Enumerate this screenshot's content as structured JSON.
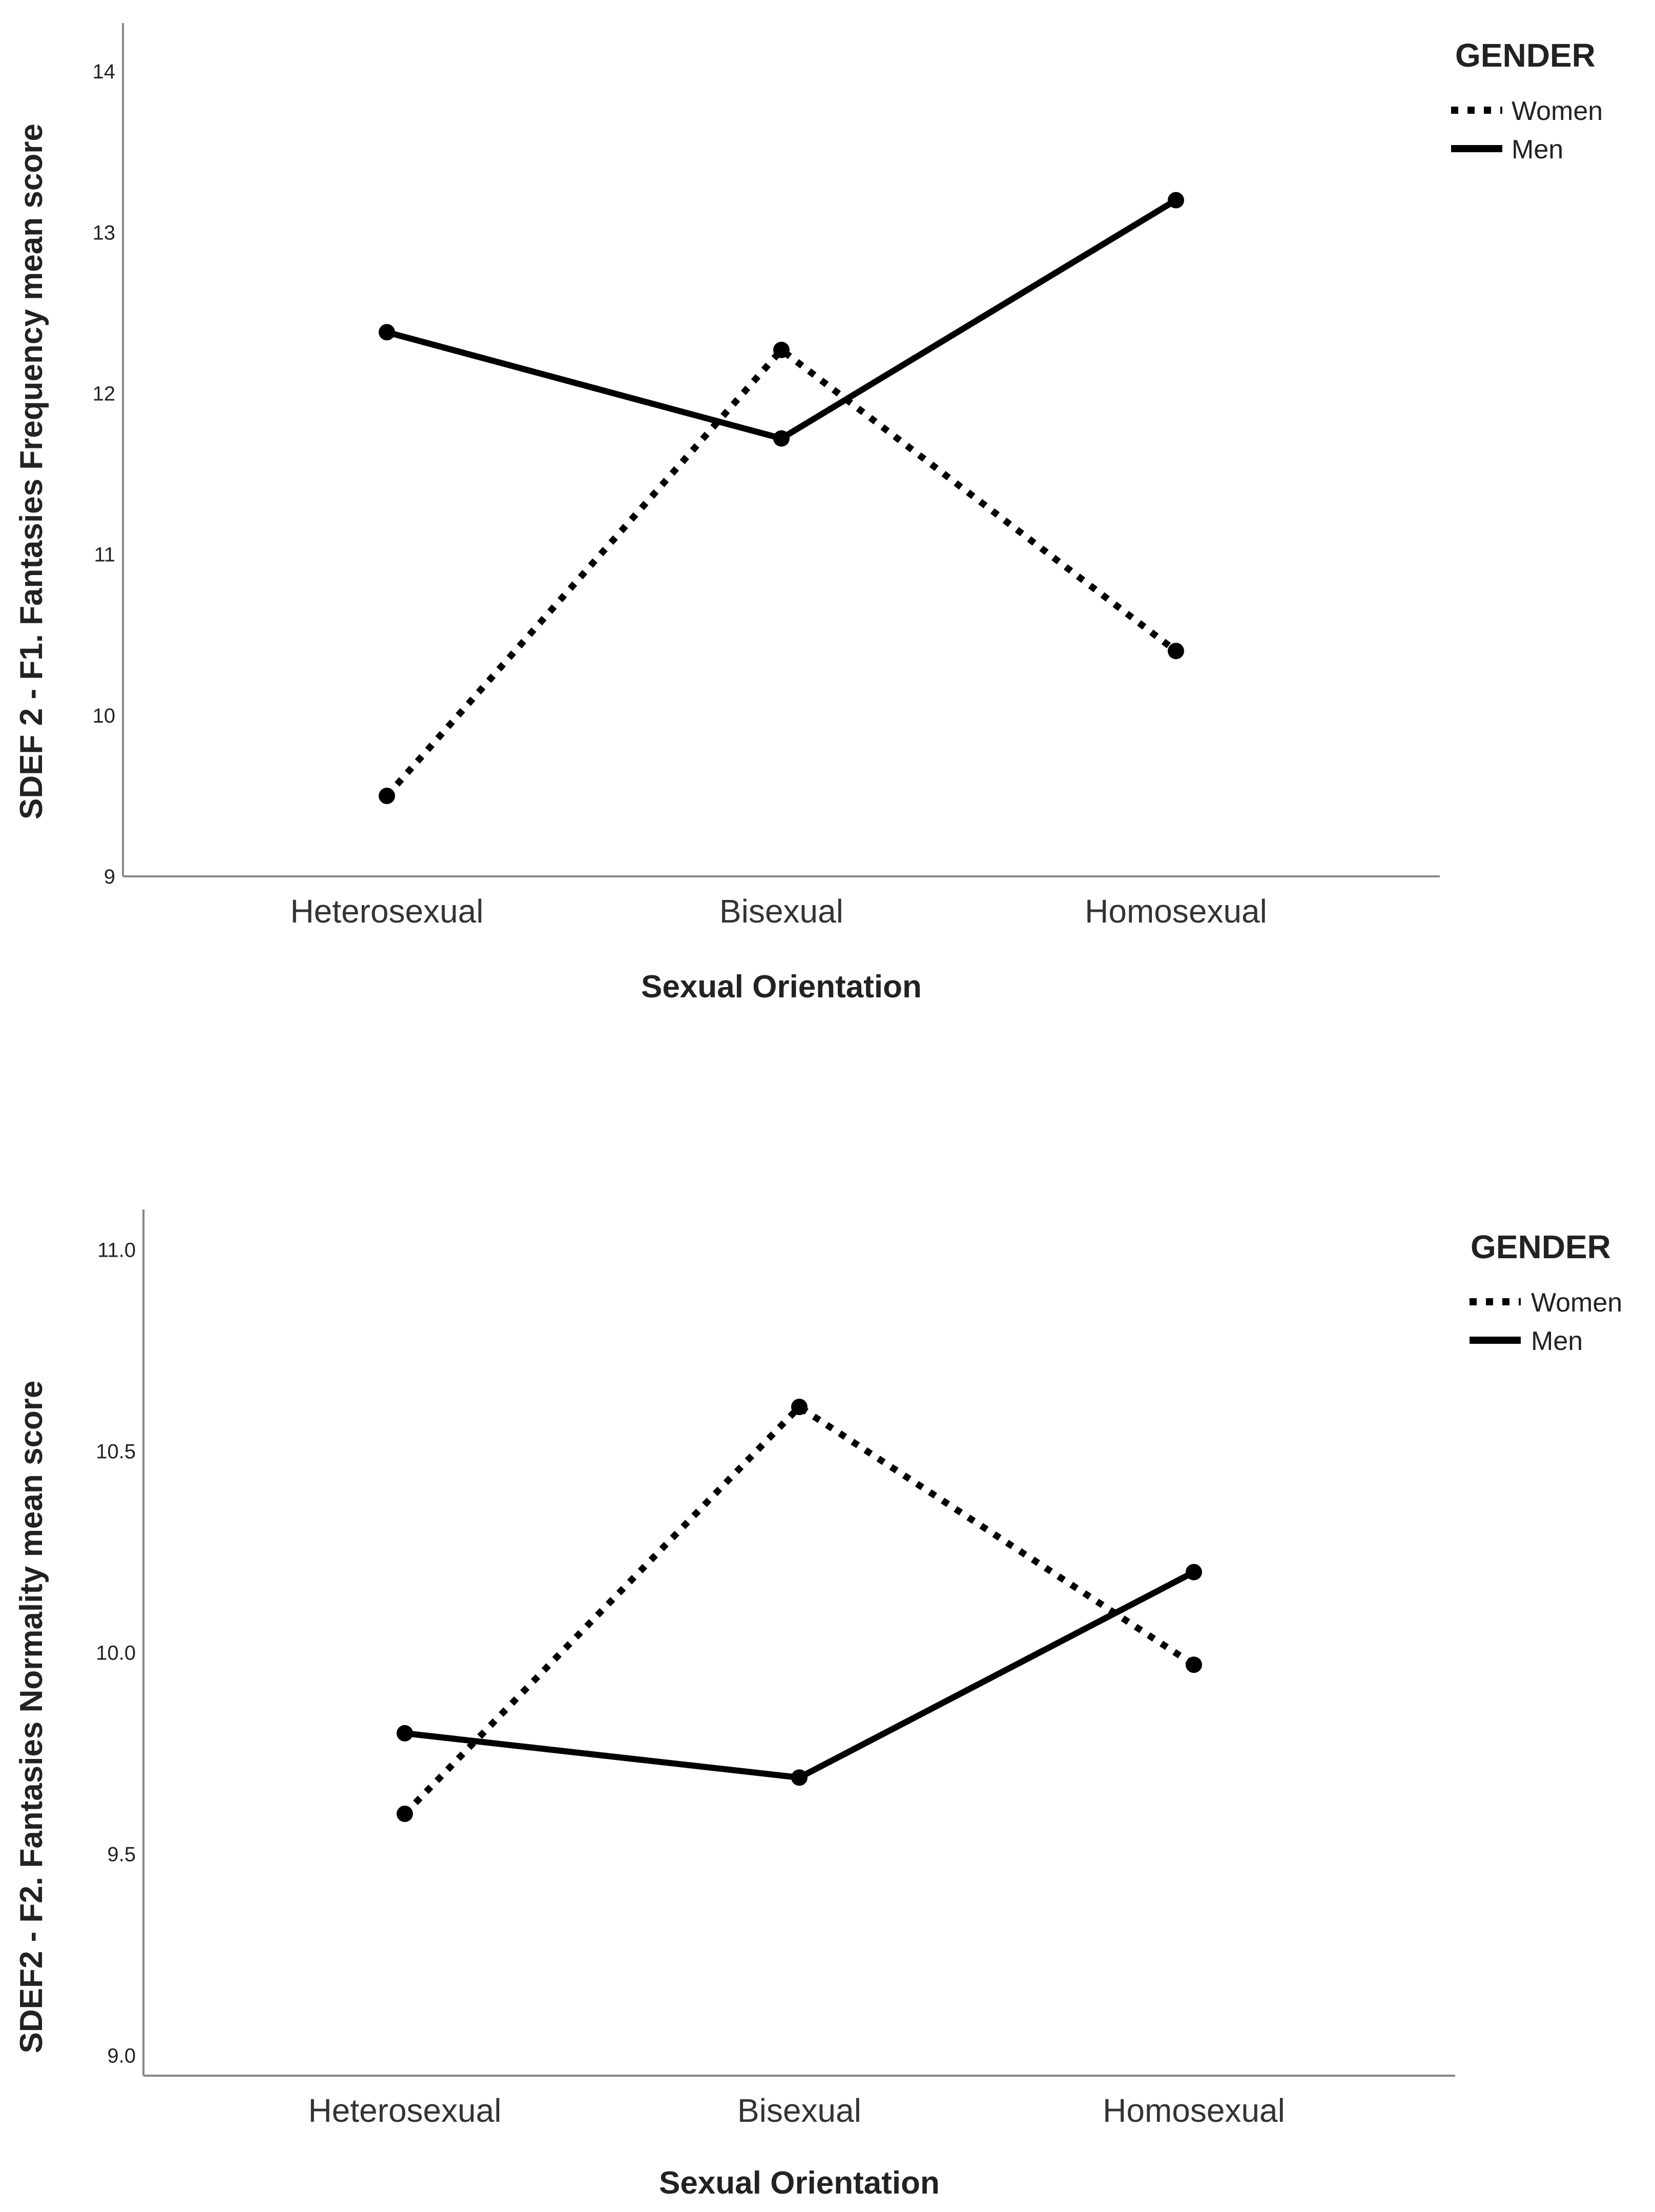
{
  "chart_data": [
    {
      "type": "line",
      "title": "",
      "xlabel": "Sexual Orientation",
      "ylabel": "SDEF 2 - F1. Fantasies Frequency mean score",
      "categories": [
        "Heterosexual",
        "Bisexual",
        "Homosexual"
      ],
      "ylim": [
        9,
        14.3
      ],
      "yticks": [
        9,
        10,
        11,
        12,
        13,
        14
      ],
      "ytick_labels": [
        "9",
        "10",
        "11",
        "12",
        "13",
        "14"
      ],
      "grid": false,
      "legend": {
        "title": "GENDER",
        "position": "top-right"
      },
      "series": [
        {
          "name": "Women",
          "style": "dotted",
          "values": [
            9.5,
            12.27,
            10.4
          ]
        },
        {
          "name": "Men",
          "style": "solid",
          "values": [
            12.38,
            11.72,
            13.2
          ]
        }
      ],
      "colors": {
        "line": "#000000",
        "axis": "#888888"
      }
    },
    {
      "type": "line",
      "title": "",
      "xlabel": "Sexual Orientation",
      "ylabel": "SDEF2 - F2. Fantasies Normality mean score",
      "categories": [
        "Heterosexual",
        "Bisexual",
        "Homosexual"
      ],
      "ylim": [
        8.95,
        11.1
      ],
      "yticks": [
        9.0,
        9.5,
        10.0,
        10.5,
        11.0
      ],
      "ytick_labels": [
        "9.0",
        "9.5",
        "10.0",
        "10.5",
        "11.0"
      ],
      "grid": false,
      "legend": {
        "title": "GENDER",
        "position": "top-right"
      },
      "series": [
        {
          "name": "Women",
          "style": "dotted",
          "values": [
            9.6,
            10.61,
            9.97
          ]
        },
        {
          "name": "Men",
          "style": "solid",
          "values": [
            9.8,
            9.69,
            10.2
          ]
        }
      ],
      "colors": {
        "line": "#000000",
        "axis": "#888888"
      }
    }
  ]
}
